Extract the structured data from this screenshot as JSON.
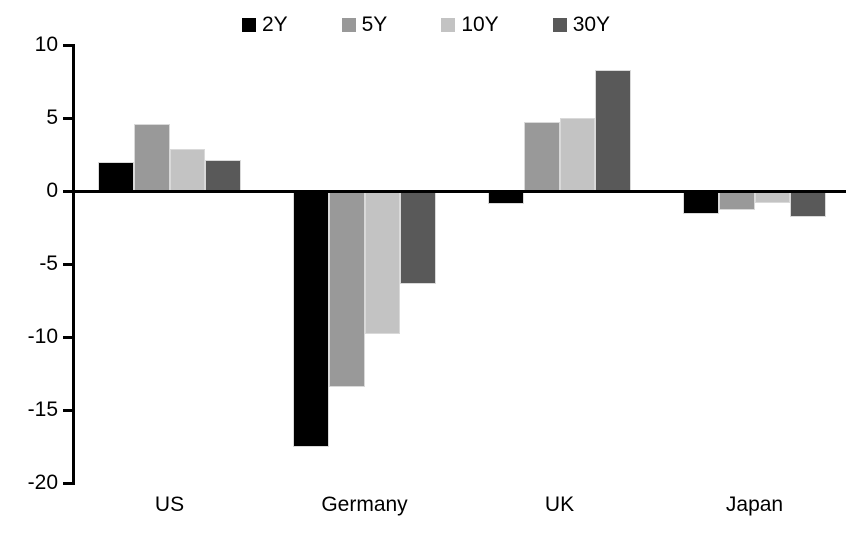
{
  "chart_data": {
    "type": "bar",
    "title": "",
    "xlabel": "",
    "ylabel": "",
    "categories": [
      "US",
      "Germany",
      "UK",
      "Japan"
    ],
    "series": [
      {
        "name": "2Y",
        "color": "#000000",
        "values": [
          2.0,
          -17.5,
          -0.9,
          -1.6
        ]
      },
      {
        "name": "5Y",
        "color": "#999999",
        "values": [
          4.6,
          -13.4,
          4.7,
          -1.3
        ]
      },
      {
        "name": "10Y",
        "color": "#c3c3c3",
        "values": [
          2.9,
          -9.8,
          5.0,
          -0.8
        ]
      },
      {
        "name": "30Y",
        "color": "#595959",
        "values": [
          2.1,
          -6.4,
          8.3,
          -1.8
        ]
      }
    ],
    "ylim": [
      -20,
      10
    ],
    "yticks": [
      10,
      5,
      0,
      -5,
      -10,
      -15,
      -20
    ],
    "grid": false,
    "legend_position": "top"
  },
  "style": {
    "background": "#ffffff",
    "axis_color": "#000000",
    "text_color": "#000000",
    "bar_outline": "#d9d9d9"
  }
}
